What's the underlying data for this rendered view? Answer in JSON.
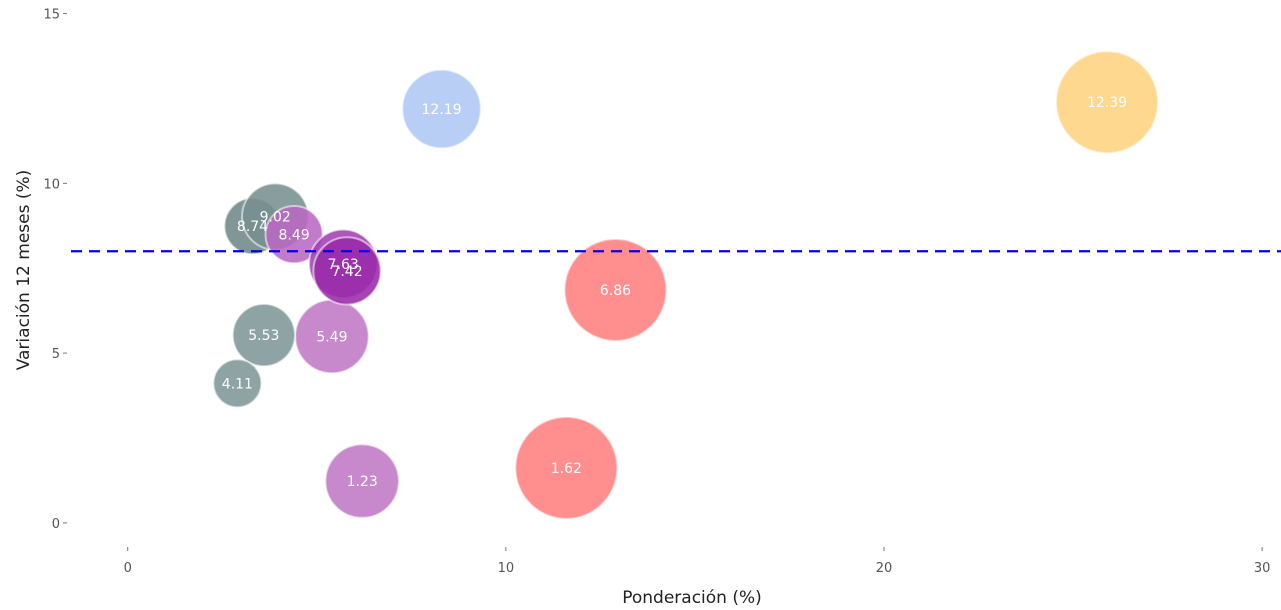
{
  "chart_data": {
    "type": "scatter",
    "title": "",
    "xlabel": "Ponderación (%)",
    "ylabel": "Variación 12 meses (%)",
    "xlim": [
      -1.5,
      30.5
    ],
    "ylim": [
      -0.8,
      15.4
    ],
    "xticks": [
      0,
      10,
      20,
      30
    ],
    "yticks": [
      0,
      5,
      10,
      15
    ],
    "grid": false,
    "legend": "none",
    "reference_line": {
      "y": 8.0,
      "color": "#0000ee",
      "style": "dashed"
    },
    "points": [
      {
        "x": 8.3,
        "y": 12.19,
        "size": 0.77,
        "label": "12.19",
        "color": "#aec7f4"
      },
      {
        "x": 25.9,
        "y": 12.39,
        "size": 1.0,
        "label": "12.39",
        "color": "#fed380"
      },
      {
        "x": 12.9,
        "y": 6.86,
        "size": 1.0,
        "label": "6.86",
        "color": "#ff7f7f"
      },
      {
        "x": 11.6,
        "y": 1.62,
        "size": 1.0,
        "label": "1.62",
        "color": "#ff7f7f"
      },
      {
        "x": 6.2,
        "y": 1.23,
        "size": 0.72,
        "label": "1.23",
        "color": "#bf78c5"
      },
      {
        "x": 5.4,
        "y": 5.49,
        "size": 0.72,
        "label": "5.49",
        "color": "#bf78c5"
      },
      {
        "x": 3.6,
        "y": 5.53,
        "size": 0.61,
        "label": "5.53",
        "color": "#7e9797"
      },
      {
        "x": 2.9,
        "y": 4.11,
        "size": 0.47,
        "label": "4.11",
        "color": "#7e9797"
      },
      {
        "x": 3.3,
        "y": 8.74,
        "size": 0.55,
        "label": "8.74",
        "color": "#6f8888"
      },
      {
        "x": 3.9,
        "y": 9.02,
        "size": 0.65,
        "label": "9.02",
        "color": "#778f8f"
      },
      {
        "x": 4.4,
        "y": 8.49,
        "size": 0.56,
        "label": "8.49",
        "color": "#b968c3"
      },
      {
        "x": 5.7,
        "y": 7.63,
        "size": 0.67,
        "label": "7.63",
        "color": "#a040b0"
      },
      {
        "x": 5.8,
        "y": 7.42,
        "size": 0.66,
        "label": "7.42",
        "color": "#9a2aa8"
      }
    ]
  }
}
